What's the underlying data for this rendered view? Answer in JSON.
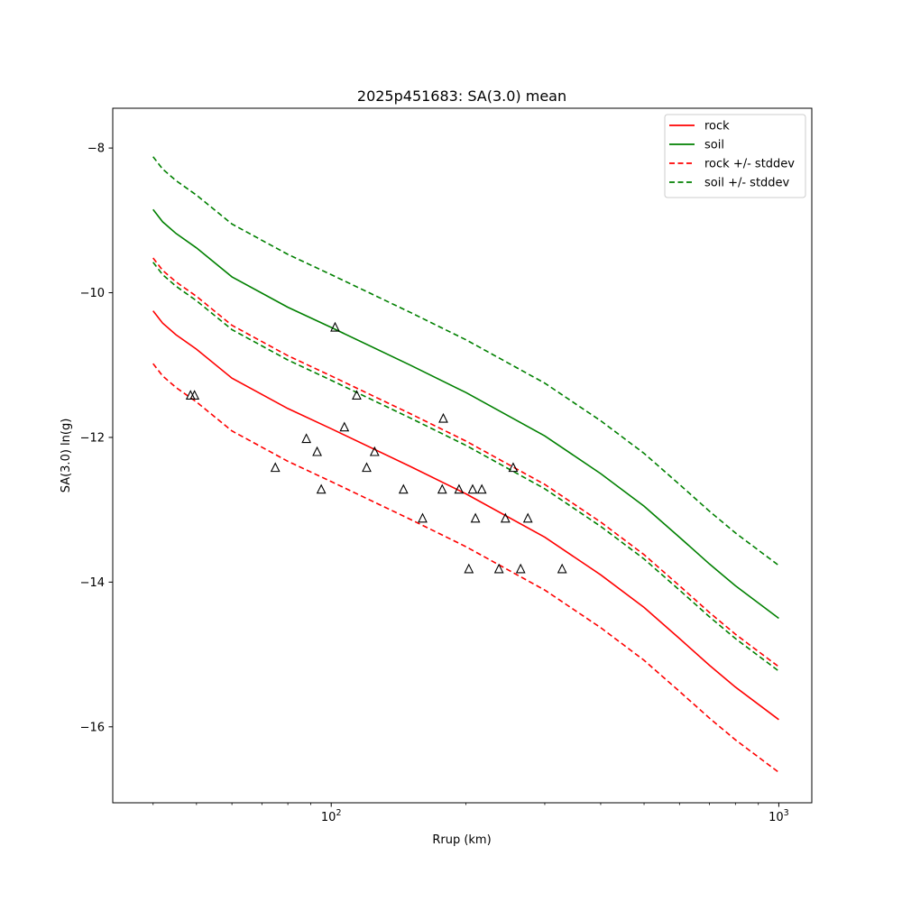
{
  "chart_data": {
    "type": "line",
    "title": "2025p451683: SA(3.0) mean",
    "xlabel": "Rrup (km)",
    "ylabel": "SA(3.0) ln(g)",
    "x_scale": "log",
    "xlim": [
      32.5,
      1185
    ],
    "ylim": [
      -17.05,
      -7.45
    ],
    "x_tick_labels": [
      {
        "value": 100,
        "label": "10^2"
      },
      {
        "value": 1000,
        "label": "10^3"
      }
    ],
    "y_ticks": [
      -16,
      -14,
      -12,
      -10,
      -8
    ],
    "y_tick_labels": [
      "−16",
      "−14",
      "−12",
      "−10",
      "−8"
    ],
    "grid": false,
    "legend_position": "top-right",
    "colors": {
      "rock": "#ff0000",
      "soil": "#008000",
      "markers": "#000000"
    },
    "series": [
      {
        "name": "rock",
        "color": "#ff0000",
        "style": "solid",
        "x": [
          40,
          42,
          45,
          50,
          60,
          80,
          100,
          150,
          200,
          300,
          400,
          500,
          600,
          700,
          800,
          1000
        ],
        "y": [
          -10.25,
          -10.42,
          -10.58,
          -10.78,
          -11.18,
          -11.6,
          -11.88,
          -12.4,
          -12.78,
          -13.38,
          -13.9,
          -14.35,
          -14.78,
          -15.15,
          -15.45,
          -15.9
        ]
      },
      {
        "name": "soil",
        "color": "#008000",
        "style": "solid",
        "x": [
          40,
          42,
          45,
          50,
          60,
          80,
          100,
          150,
          200,
          300,
          400,
          500,
          600,
          700,
          800,
          1000
        ],
        "y": [
          -8.85,
          -9.02,
          -9.18,
          -9.38,
          -9.78,
          -10.2,
          -10.48,
          -11.0,
          -11.38,
          -11.98,
          -12.5,
          -12.95,
          -13.38,
          -13.75,
          -14.05,
          -14.5
        ]
      },
      {
        "name": "rock +/- stddev",
        "color": "#ff0000",
        "style": "dashed",
        "x": [
          40,
          42,
          45,
          50,
          60,
          80,
          100,
          150,
          200,
          300,
          400,
          500,
          600,
          700,
          800,
          1000
        ],
        "y": [
          -9.52,
          -9.69,
          -9.85,
          -10.05,
          -10.45,
          -10.87,
          -11.15,
          -11.67,
          -12.05,
          -12.65,
          -13.17,
          -13.62,
          -14.05,
          -14.42,
          -14.72,
          -15.17
        ]
      },
      {
        "name": "rock +/- stddev",
        "color": "#ff0000",
        "style": "dashed",
        "legend": false,
        "x": [
          40,
          42,
          45,
          50,
          60,
          80,
          100,
          150,
          200,
          300,
          400,
          500,
          600,
          700,
          800,
          1000
        ],
        "y": [
          -10.98,
          -11.15,
          -11.31,
          -11.51,
          -11.91,
          -12.33,
          -12.61,
          -13.13,
          -13.51,
          -14.11,
          -14.63,
          -15.08,
          -15.51,
          -15.88,
          -16.18,
          -16.63
        ]
      },
      {
        "name": "soil +/- stddev",
        "color": "#008000",
        "style": "dashed",
        "x": [
          40,
          42,
          45,
          50,
          60,
          80,
          100,
          150,
          200,
          300,
          400,
          500,
          600,
          700,
          800,
          1000
        ],
        "y": [
          -8.12,
          -8.29,
          -8.45,
          -8.65,
          -9.05,
          -9.47,
          -9.75,
          -10.27,
          -10.65,
          -11.25,
          -11.77,
          -12.22,
          -12.65,
          -13.02,
          -13.32,
          -13.77
        ]
      },
      {
        "name": "soil +/- stddev",
        "color": "#008000",
        "style": "dashed",
        "legend": false,
        "x": [
          40,
          42,
          45,
          50,
          60,
          80,
          100,
          150,
          200,
          300,
          400,
          500,
          600,
          700,
          800,
          1000
        ],
        "y": [
          -9.58,
          -9.75,
          -9.91,
          -10.11,
          -10.51,
          -10.93,
          -11.21,
          -11.73,
          -12.11,
          -12.71,
          -13.23,
          -13.68,
          -14.11,
          -14.48,
          -14.78,
          -15.23
        ]
      }
    ],
    "observations": {
      "marker": "triangle-open",
      "x": [
        48.5,
        49.5,
        75,
        88,
        93,
        95,
        102,
        107,
        114,
        120,
        125,
        145,
        160,
        177,
        178,
        193,
        203,
        207,
        210,
        217,
        237,
        245,
        255,
        265,
        275,
        328
      ],
      "y": [
        -11.42,
        -11.42,
        -12.42,
        -12.02,
        -12.2,
        -12.72,
        -10.48,
        -11.86,
        -11.42,
        -12.42,
        -12.2,
        -12.72,
        -13.12,
        -12.72,
        -11.74,
        -12.72,
        -13.82,
        -12.72,
        -13.12,
        -12.72,
        -13.82,
        -13.12,
        -12.42,
        -13.82,
        -13.12,
        -13.82
      ]
    }
  }
}
